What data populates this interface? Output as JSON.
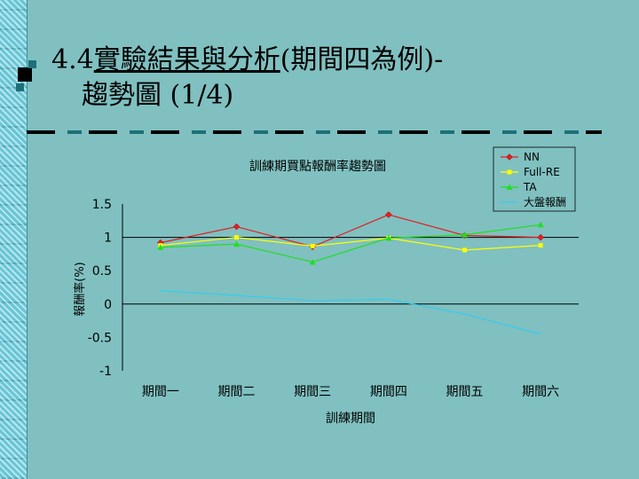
{
  "slide": {
    "title_line1_prefix": "4.4",
    "title_line1_underlined": "實驗結果與分析",
    "title_line1_suffix": "(期間四為例)-",
    "title_line2": "趨勢圖 (1/4)"
  },
  "colors": {
    "background": "#80c0c0",
    "NN": "#e02020",
    "Full-RE": "#ffff00",
    "TA": "#22dd22",
    "market": "#33ccee"
  },
  "chart_data": {
    "type": "line",
    "title": "訓練期買點報酬率趨勢圖",
    "xlabel": "訓練期間",
    "ylabel": "報酬率(%)",
    "categories": [
      "期間一",
      "期間二",
      "期間三",
      "期間四",
      "期間五",
      "期間六"
    ],
    "y_ticks": [
      "1.5",
      "1",
      "0.5",
      "0",
      "-0.5",
      "-1"
    ],
    "ylim": [
      -1,
      1.5
    ],
    "grid": "horizontal at y=1 and y=0",
    "legend_position": "top-right",
    "series": [
      {
        "name": "NN",
        "marker": "diamond",
        "values": [
          0.92,
          1.16,
          0.86,
          1.34,
          1.03,
          1.0
        ]
      },
      {
        "name": "Full-RE",
        "marker": "square",
        "values": [
          0.88,
          1.0,
          0.87,
          0.99,
          0.81,
          0.88
        ]
      },
      {
        "name": "TA",
        "marker": "triangle",
        "values": [
          0.85,
          0.9,
          0.63,
          0.99,
          1.04,
          1.19
        ]
      },
      {
        "name": "大盤報酬",
        "marker": "none",
        "values": [
          0.2,
          0.13,
          0.05,
          0.07,
          -0.15,
          -0.45
        ]
      }
    ]
  }
}
